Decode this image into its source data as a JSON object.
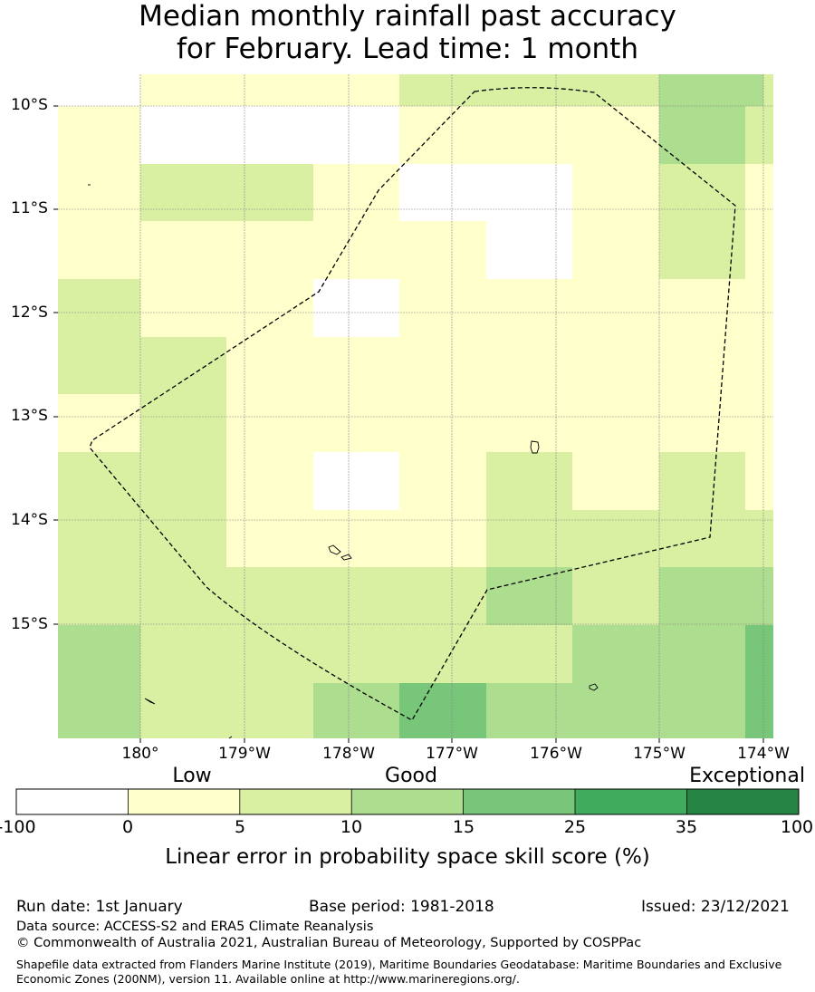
{
  "title_line1": "Median monthly rainfall past accuracy",
  "title_line2": "for February. Lead time: 1 month",
  "map": {
    "lat_labels": [
      "10°S",
      "11°S",
      "12°S",
      "13°S",
      "14°S",
      "15°S"
    ],
    "lon_labels": [
      "180°",
      "179°W",
      "178°W",
      "177°W",
      "176°W",
      "175°W",
      "174°W"
    ],
    "lat_values": [
      -10,
      -11,
      -12,
      -13,
      -14,
      -15
    ],
    "lon_values": [
      180,
      -179,
      -178,
      -177,
      -176,
      -175,
      -174
    ],
    "extent": {
      "lon_min": 179.2,
      "lon_max": -173.95,
      "lat_min": -15.95,
      "lat_max": -9.7
    },
    "boundary": "dashed EEZ boundary",
    "grid": true
  },
  "colorbar": {
    "category_labels": [
      "Low",
      "Good",
      "Exceptional"
    ],
    "ticks": [
      "-100",
      "0",
      "5",
      "10",
      "15",
      "25",
      "35",
      "100"
    ],
    "colors": [
      "#ffffff",
      "#ffffcc",
      "#d9f0a3",
      "#addd8e",
      "#78c679",
      "#41ab5d",
      "#238443"
    ],
    "label": "Linear error in probability space skill score (%)"
  },
  "footer": {
    "run_date": "Run date: 1st January",
    "base_period": "Base period: 1981-2018",
    "issued": "Issued: 23/12/2021",
    "data_source": "Data source: ACCESS-S2 and ERA5 Climate Reanalysis",
    "copyright": "© Commonwealth of Australia 2021, Australian Bureau of Meteorology, Supported by COSPPac",
    "shapefile": "Shapefile data extracted from Flanders Marine Institute (2019), Maritime Boundaries Geodatabase: Maritime Boundaries and Exclusive Economic Zones (200NM), version 11. Available online at http://www.marineregions.org/."
  }
}
